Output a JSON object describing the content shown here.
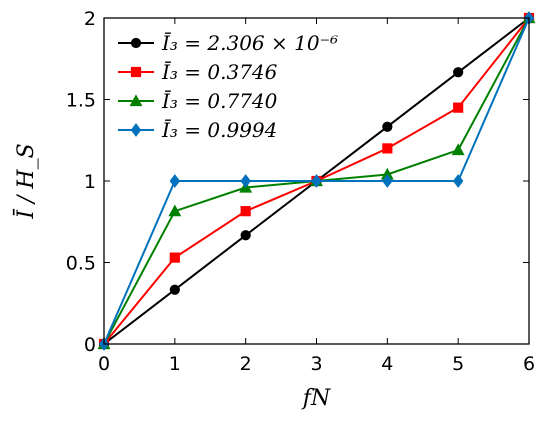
{
  "chart_data": {
    "type": "line",
    "xlabel": "fN",
    "ylabel": "Ī / H_S",
    "xlim": [
      0,
      6
    ],
    "ylim": [
      0,
      2
    ],
    "x_ticks": [
      "0",
      "1",
      "2",
      "3",
      "4",
      "5",
      "6"
    ],
    "y_ticks": [
      "0",
      "0.5",
      "1",
      "1.5",
      "2"
    ],
    "grid": false,
    "legend_position": "top-left",
    "x": [
      0,
      1,
      2,
      3,
      4,
      5,
      6
    ],
    "series": [
      {
        "name": "Ī₃ = 2.306 × 10⁻⁶",
        "color": "#000000",
        "marker": "circle",
        "values": [
          0,
          0.333,
          0.667,
          1.0,
          1.333,
          1.667,
          2.0
        ]
      },
      {
        "name": "Ī₃ = 0.3746",
        "color": "#ff0000",
        "marker": "square",
        "values": [
          0,
          0.53,
          0.815,
          1.0,
          1.2,
          1.45,
          2.0
        ]
      },
      {
        "name": "Ī₃ = 0.7740",
        "color": "#008000",
        "marker": "triangle",
        "values": [
          0,
          0.815,
          0.96,
          1.0,
          1.04,
          1.19,
          2.0
        ]
      },
      {
        "name": "Ī₃ = 0.9994",
        "color": "#0072bd",
        "marker": "diamond",
        "values": [
          0,
          1.0,
          1.0,
          1.0,
          1.0,
          1.0,
          2.0
        ]
      }
    ]
  }
}
